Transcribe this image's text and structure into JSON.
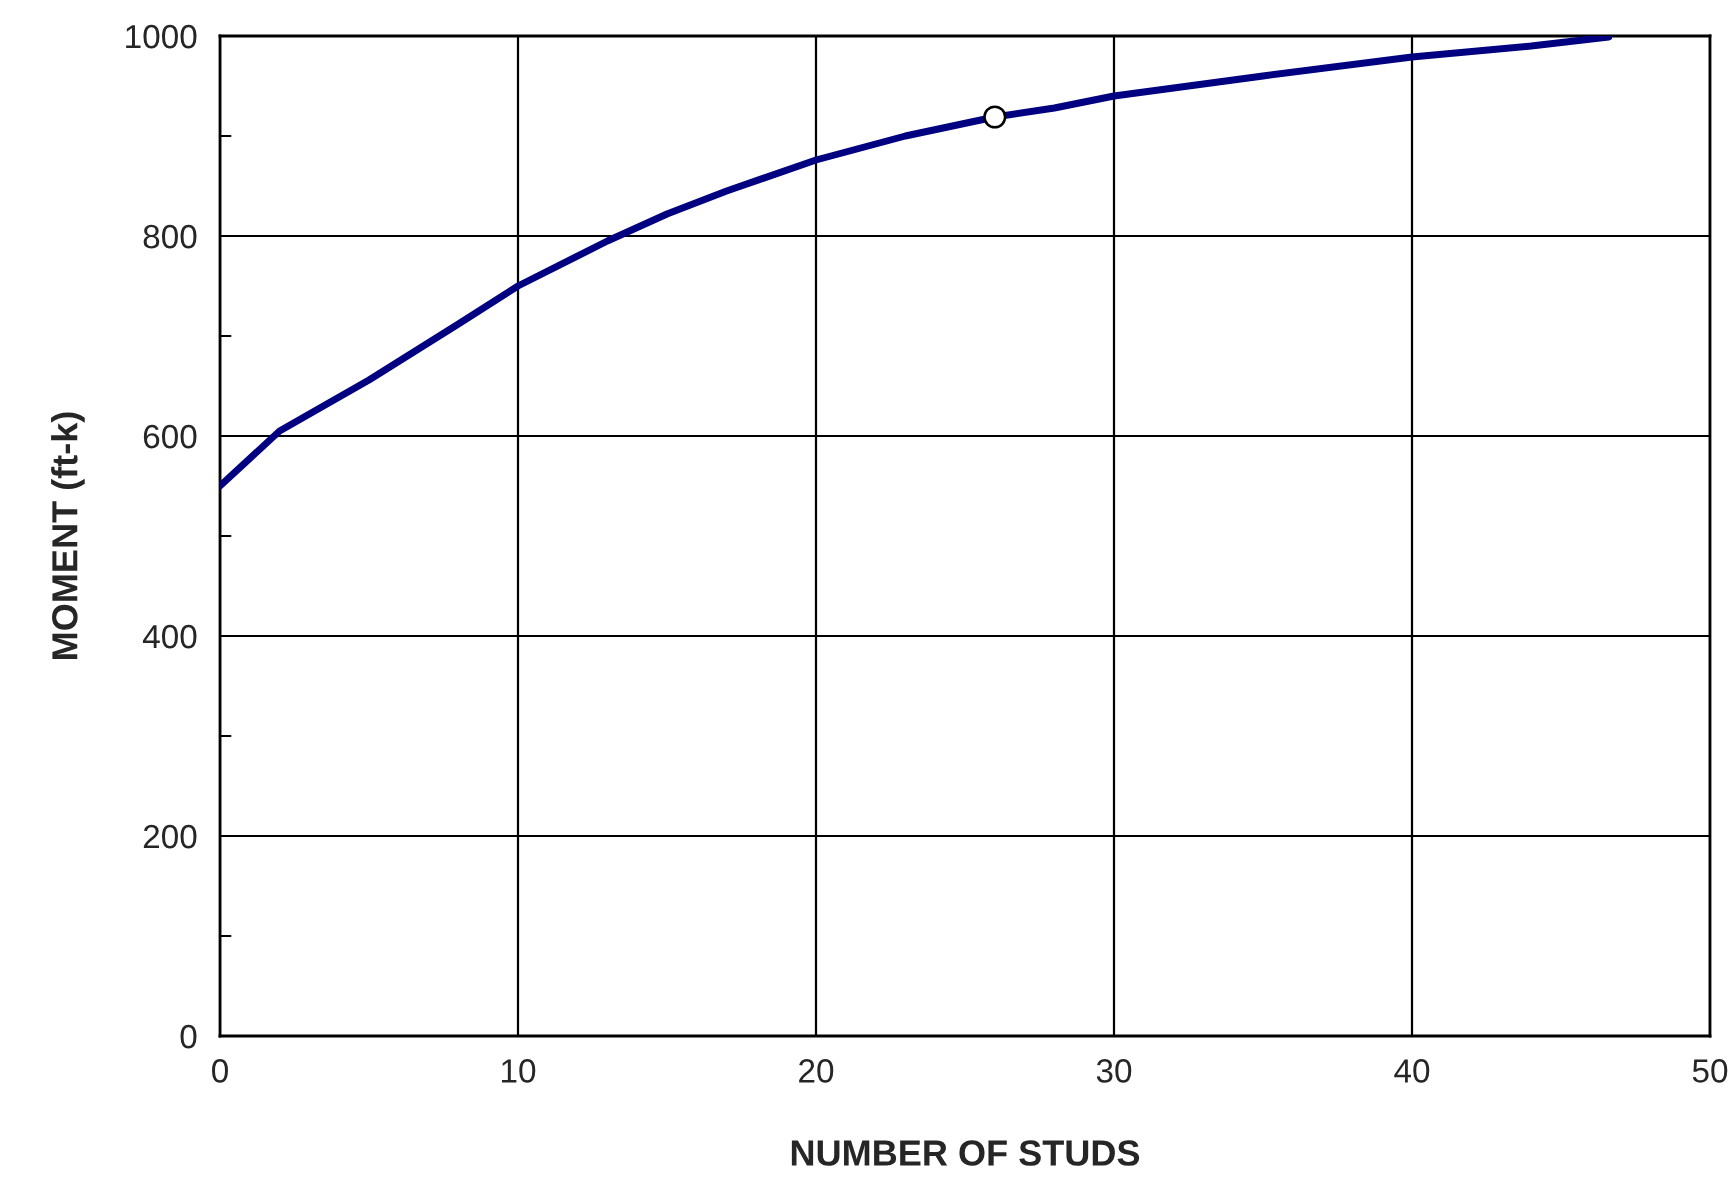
{
  "chart_data": {
    "type": "line",
    "xlabel": "NUMBER OF STUDS",
    "ylabel": "MOMENT (ft-k)",
    "xlim": [
      0,
      50
    ],
    "xticks": [
      0,
      10,
      20,
      30,
      40,
      50
    ],
    "ylim": [
      0,
      1000
    ],
    "yticks": [
      0,
      {
        "value": 100,
        "label": null
      },
      200,
      {
        "value": 300,
        "label": null
      },
      400,
      {
        "value": 500,
        "label": null
      },
      600,
      {
        "value": 700,
        "label": null
      },
      800,
      {
        "value": 900,
        "label": null
      },
      1000
    ],
    "grid": true,
    "legend": false,
    "series": [
      {
        "color": "#000080",
        "marker": "none",
        "x": [
          0,
          2,
          5,
          8,
          10,
          13,
          15,
          17,
          20,
          23,
          26,
          28,
          30,
          35,
          40,
          44,
          46.6
        ],
        "values": [
          550,
          605,
          656,
          712,
          750,
          795,
          822,
          845,
          876,
          900,
          919,
          928,
          940,
          960,
          979,
          990,
          999
        ]
      },
      {
        "type": "scatter",
        "color": "#ffffff",
        "marker": "circle",
        "x": [
          26
        ],
        "values": [
          919
        ]
      }
    ]
  }
}
